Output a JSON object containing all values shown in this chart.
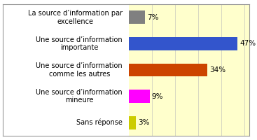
{
  "categories": [
    "Sans réponse",
    "Une source d’information\nmineure",
    "Une source d’information\ncomme les autres",
    "Une source d’information\nimportante",
    "La source d’information par\nexcellence"
  ],
  "values": [
    3,
    9,
    34,
    47,
    7
  ],
  "bar_colors": [
    "#cccc00",
    "#ff00ff",
    "#cc4400",
    "#3355cc",
    "#808080"
  ],
  "label_color": "#000000",
  "plot_bg_color": "#ffffcc",
  "left_bg_color": "#ffffff",
  "border_color": "#999999",
  "xlim": [
    0,
    52
  ],
  "bar_height": 0.5,
  "label_fontsize": 7.0,
  "value_fontsize": 7.5
}
